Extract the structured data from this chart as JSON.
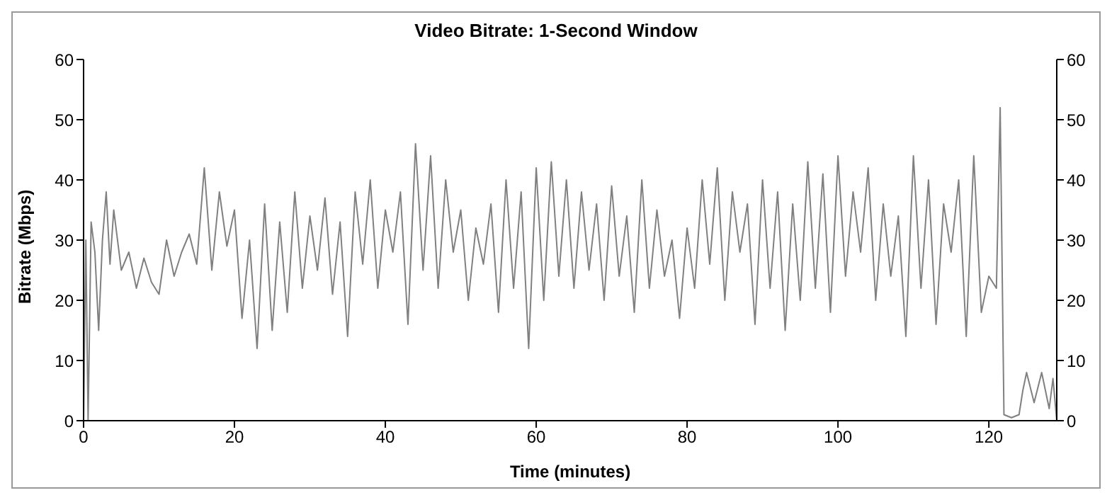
{
  "chart_data": {
    "type": "line",
    "title": "Video Bitrate: 1-Second Window",
    "xlabel": "Time (minutes)",
    "ylabel": "Bitrate (Mbps)",
    "x": [
      0,
      0.3,
      0.6,
      1,
      1.5,
      2,
      2.5,
      3,
      3.5,
      4,
      5,
      6,
      7,
      8,
      9,
      10,
      11,
      12,
      13,
      14,
      15,
      16,
      17,
      18,
      19,
      20,
      21,
      22,
      23,
      24,
      25,
      26,
      27,
      28,
      29,
      30,
      31,
      32,
      33,
      34,
      35,
      36,
      37,
      38,
      39,
      40,
      41,
      42,
      43,
      44,
      45,
      46,
      47,
      48,
      49,
      50,
      51,
      52,
      53,
      54,
      55,
      56,
      57,
      58,
      59,
      60,
      61,
      62,
      63,
      64,
      65,
      66,
      67,
      68,
      69,
      70,
      71,
      72,
      73,
      74,
      75,
      76,
      77,
      78,
      79,
      80,
      81,
      82,
      83,
      84,
      85,
      86,
      87,
      88,
      89,
      90,
      91,
      92,
      93,
      94,
      95,
      96,
      97,
      98,
      99,
      100,
      101,
      102,
      103,
      104,
      105,
      106,
      107,
      108,
      109,
      110,
      111,
      112,
      113,
      114,
      115,
      116,
      117,
      118,
      119,
      120,
      121,
      121.5,
      122,
      123,
      124,
      124.5,
      125,
      126,
      127,
      128,
      128.5,
      129
    ],
    "series": [
      {
        "color": "#808080",
        "values": [
          0,
          30,
          0,
          33,
          28,
          15,
          30,
          38,
          26,
          35,
          25,
          28,
          22,
          27,
          23,
          21,
          30,
          24,
          28,
          31,
          26,
          42,
          25,
          38,
          29,
          35,
          17,
          30,
          12,
          36,
          15,
          33,
          18,
          38,
          22,
          34,
          25,
          37,
          21,
          33,
          14,
          38,
          26,
          40,
          22,
          35,
          28,
          38,
          16,
          46,
          25,
          44,
          22,
          40,
          28,
          35,
          20,
          32,
          26,
          36,
          18,
          40,
          22,
          38,
          12,
          42,
          20,
          43,
          24,
          40,
          22,
          38,
          25,
          36,
          20,
          39,
          24,
          34,
          18,
          40,
          22,
          35,
          24,
          30,
          17,
          32,
          22,
          40,
          26,
          42,
          20,
          38,
          28,
          36,
          16,
          40,
          22,
          38,
          15,
          36,
          20,
          43,
          22,
          41,
          18,
          44,
          24,
          38,
          28,
          42,
          20,
          36,
          24,
          34,
          14,
          44,
          22,
          40,
          16,
          36,
          28,
          40,
          14,
          44,
          18,
          24,
          22,
          52,
          1,
          0.5,
          1,
          5,
          8,
          3,
          8,
          2,
          7,
          0
        ]
      }
    ],
    "xlim": [
      0,
      129
    ],
    "xticks": [
      0,
      20,
      40,
      60,
      80,
      100,
      120
    ],
    "ylim": [
      0,
      60
    ],
    "yticks": [
      0,
      10,
      20,
      30,
      40,
      50,
      60
    ],
    "y2lim": [
      0,
      60
    ],
    "y2ticks": [
      0,
      10,
      20,
      30,
      40,
      50,
      60
    ],
    "grid": false,
    "legend": false,
    "marker": "none",
    "line_style": "solid"
  }
}
